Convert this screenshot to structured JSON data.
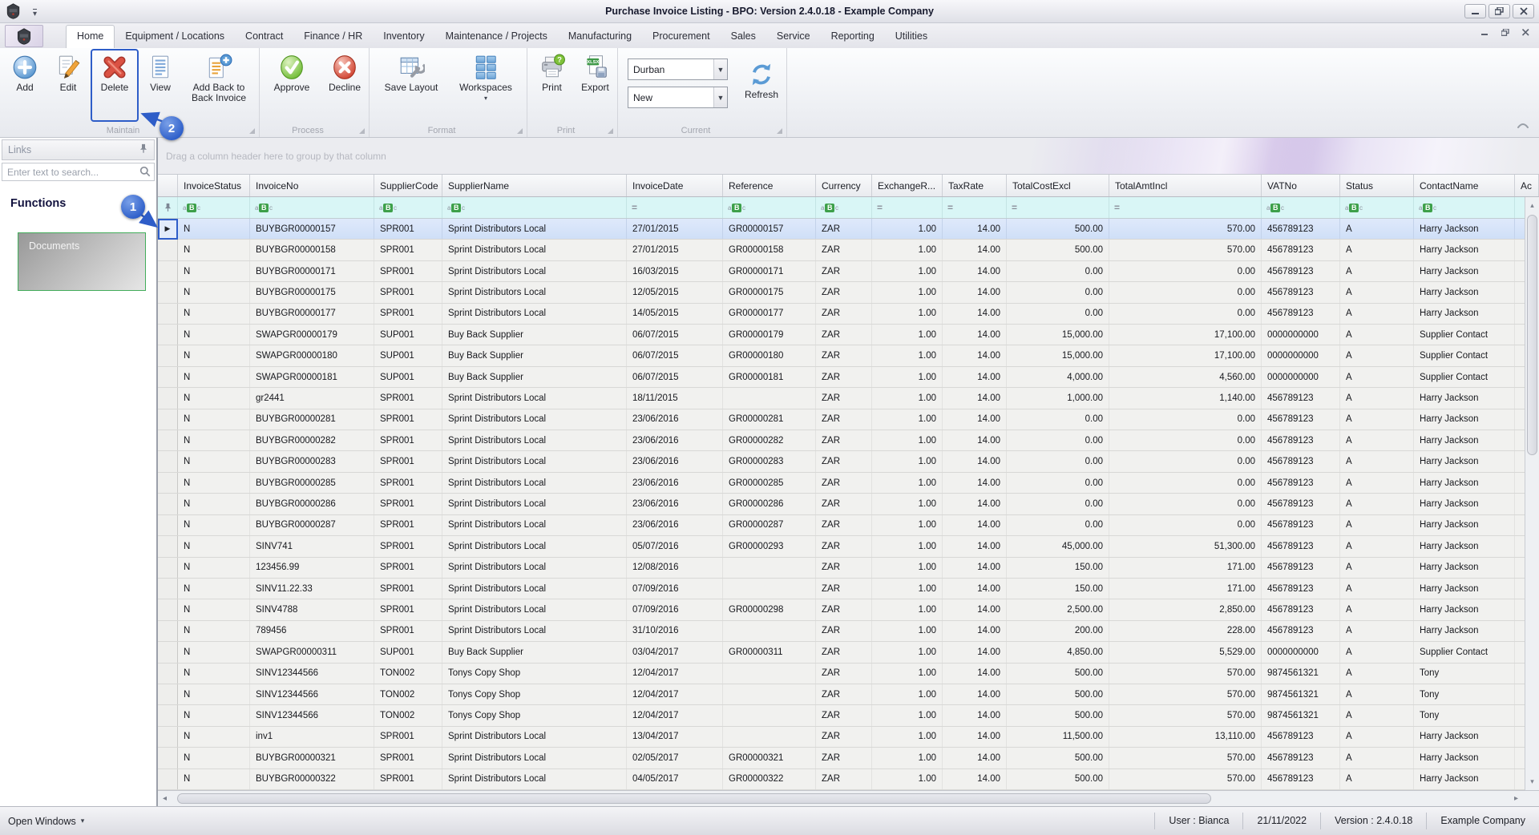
{
  "window": {
    "title": "Purchase Invoice Listing - BPO: Version 2.4.0.18 - Example Company"
  },
  "tabs": {
    "active": "Home",
    "items": [
      "Home",
      "Equipment / Locations",
      "Contract",
      "Finance / HR",
      "Inventory",
      "Maintenance / Projects",
      "Manufacturing",
      "Procurement",
      "Sales",
      "Service",
      "Reporting",
      "Utilities"
    ]
  },
  "ribbon": {
    "groups": [
      {
        "caption": "Maintain",
        "items": [
          {
            "label": "Add"
          },
          {
            "label": "Edit"
          },
          {
            "label": "Delete"
          },
          {
            "label": "View"
          },
          {
            "label": "Add Back to Back Invoice"
          }
        ]
      },
      {
        "caption": "Process",
        "items": [
          {
            "label": "Approve"
          },
          {
            "label": "Decline"
          }
        ]
      },
      {
        "caption": "Format",
        "items": [
          {
            "label": "Save Layout"
          },
          {
            "label": "Workspaces"
          }
        ]
      },
      {
        "caption": "Print",
        "items": [
          {
            "label": "Print"
          },
          {
            "label": "Export"
          }
        ]
      },
      {
        "caption": "Current",
        "items": [
          {
            "label": "Durban",
            "type": "dropdown"
          },
          {
            "label": "New",
            "type": "dropdown"
          },
          {
            "label": "Refresh"
          }
        ]
      }
    ]
  },
  "sidebar": {
    "title": "Links",
    "search_placeholder": "Enter text to search...",
    "functions_heading": "Functions",
    "tiles": [
      {
        "label": "Documents"
      }
    ]
  },
  "grid": {
    "group_hint": "Drag a column header here to group by that column",
    "selected_row_index": 0,
    "columns": [
      {
        "label": "InvoiceStatus",
        "filter": "abc"
      },
      {
        "label": "InvoiceNo",
        "filter": "abc"
      },
      {
        "label": "SupplierCode",
        "filter": "abc"
      },
      {
        "label": "SupplierName",
        "filter": "abc"
      },
      {
        "label": "InvoiceDate",
        "filter": "equals"
      },
      {
        "label": "Reference",
        "filter": "abc"
      },
      {
        "label": "Currency",
        "filter": "abc"
      },
      {
        "label": "ExchangeR...",
        "filter": "equals",
        "align": "right"
      },
      {
        "label": "TaxRate",
        "filter": "equals",
        "align": "right"
      },
      {
        "label": "TotalCostExcl",
        "filter": "equals",
        "align": "right"
      },
      {
        "label": "TotalAmtIncl",
        "filter": "equals",
        "align": "right"
      },
      {
        "label": "VATNo",
        "filter": "abc"
      },
      {
        "label": "Status",
        "filter": "abc"
      },
      {
        "label": "ContactName",
        "filter": "abc"
      },
      {
        "label": "Ac",
        "filter": null
      }
    ],
    "rows": [
      [
        "N",
        "BUYBGR00000157",
        "SPR001",
        "Sprint Distributors Local",
        "27/01/2015",
        "GR00000157",
        "ZAR",
        "1.00",
        "14.00",
        "500.00",
        "570.00",
        "456789123",
        "A",
        "Harry Jackson"
      ],
      [
        "N",
        "BUYBGR00000158",
        "SPR001",
        "Sprint Distributors Local",
        "27/01/2015",
        "GR00000158",
        "ZAR",
        "1.00",
        "14.00",
        "500.00",
        "570.00",
        "456789123",
        "A",
        "Harry Jackson"
      ],
      [
        "N",
        "BUYBGR00000171",
        "SPR001",
        "Sprint Distributors Local",
        "16/03/2015",
        "GR00000171",
        "ZAR",
        "1.00",
        "14.00",
        "0.00",
        "0.00",
        "456789123",
        "A",
        "Harry Jackson"
      ],
      [
        "N",
        "BUYBGR00000175",
        "SPR001",
        "Sprint Distributors Local",
        "12/05/2015",
        "GR00000175",
        "ZAR",
        "1.00",
        "14.00",
        "0.00",
        "0.00",
        "456789123",
        "A",
        "Harry Jackson"
      ],
      [
        "N",
        "BUYBGR00000177",
        "SPR001",
        "Sprint Distributors Local",
        "14/05/2015",
        "GR00000177",
        "ZAR",
        "1.00",
        "14.00",
        "0.00",
        "0.00",
        "456789123",
        "A",
        "Harry Jackson"
      ],
      [
        "N",
        "SWAPGR00000179",
        "SUP001",
        "Buy Back Supplier",
        "06/07/2015",
        "GR00000179",
        "ZAR",
        "1.00",
        "14.00",
        "15,000.00",
        "17,100.00",
        "0000000000",
        "A",
        "Supplier Contact"
      ],
      [
        "N",
        "SWAPGR00000180",
        "SUP001",
        "Buy Back Supplier",
        "06/07/2015",
        "GR00000180",
        "ZAR",
        "1.00",
        "14.00",
        "15,000.00",
        "17,100.00",
        "0000000000",
        "A",
        "Supplier Contact"
      ],
      [
        "N",
        "SWAPGR00000181",
        "SUP001",
        "Buy Back Supplier",
        "06/07/2015",
        "GR00000181",
        "ZAR",
        "1.00",
        "14.00",
        "4,000.00",
        "4,560.00",
        "0000000000",
        "A",
        "Supplier Contact"
      ],
      [
        "N",
        "gr2441",
        "SPR001",
        "Sprint Distributors Local",
        "18/11/2015",
        "",
        "ZAR",
        "1.00",
        "14.00",
        "1,000.00",
        "1,140.00",
        "456789123",
        "A",
        "Harry Jackson"
      ],
      [
        "N",
        "BUYBGR00000281",
        "SPR001",
        "Sprint Distributors Local",
        "23/06/2016",
        "GR00000281",
        "ZAR",
        "1.00",
        "14.00",
        "0.00",
        "0.00",
        "456789123",
        "A",
        "Harry Jackson"
      ],
      [
        "N",
        "BUYBGR00000282",
        "SPR001",
        "Sprint Distributors Local",
        "23/06/2016",
        "GR00000282",
        "ZAR",
        "1.00",
        "14.00",
        "0.00",
        "0.00",
        "456789123",
        "A",
        "Harry Jackson"
      ],
      [
        "N",
        "BUYBGR00000283",
        "SPR001",
        "Sprint Distributors Local",
        "23/06/2016",
        "GR00000283",
        "ZAR",
        "1.00",
        "14.00",
        "0.00",
        "0.00",
        "456789123",
        "A",
        "Harry Jackson"
      ],
      [
        "N",
        "BUYBGR00000285",
        "SPR001",
        "Sprint Distributors Local",
        "23/06/2016",
        "GR00000285",
        "ZAR",
        "1.00",
        "14.00",
        "0.00",
        "0.00",
        "456789123",
        "A",
        "Harry Jackson"
      ],
      [
        "N",
        "BUYBGR00000286",
        "SPR001",
        "Sprint Distributors Local",
        "23/06/2016",
        "GR00000286",
        "ZAR",
        "1.00",
        "14.00",
        "0.00",
        "0.00",
        "456789123",
        "A",
        "Harry Jackson"
      ],
      [
        "N",
        "BUYBGR00000287",
        "SPR001",
        "Sprint Distributors Local",
        "23/06/2016",
        "GR00000287",
        "ZAR",
        "1.00",
        "14.00",
        "0.00",
        "0.00",
        "456789123",
        "A",
        "Harry Jackson"
      ],
      [
        "N",
        "SINV741",
        "SPR001",
        "Sprint Distributors Local",
        "05/07/2016",
        "GR00000293",
        "ZAR",
        "1.00",
        "14.00",
        "45,000.00",
        "51,300.00",
        "456789123",
        "A",
        "Harry Jackson"
      ],
      [
        "N",
        "123456.99",
        "SPR001",
        "Sprint Distributors Local",
        "12/08/2016",
        "",
        "ZAR",
        "1.00",
        "14.00",
        "150.00",
        "171.00",
        "456789123",
        "A",
        "Harry Jackson"
      ],
      [
        "N",
        "SINV11.22.33",
        "SPR001",
        "Sprint Distributors Local",
        "07/09/2016",
        "",
        "ZAR",
        "1.00",
        "14.00",
        "150.00",
        "171.00",
        "456789123",
        "A",
        "Harry Jackson"
      ],
      [
        "N",
        "SINV4788",
        "SPR001",
        "Sprint Distributors Local",
        "07/09/2016",
        "GR00000298",
        "ZAR",
        "1.00",
        "14.00",
        "2,500.00",
        "2,850.00",
        "456789123",
        "A",
        "Harry Jackson"
      ],
      [
        "N",
        "789456",
        "SPR001",
        "Sprint Distributors Local",
        "31/10/2016",
        "",
        "ZAR",
        "1.00",
        "14.00",
        "200.00",
        "228.00",
        "456789123",
        "A",
        "Harry Jackson"
      ],
      [
        "N",
        "SWAPGR00000311",
        "SUP001",
        "Buy Back Supplier",
        "03/04/2017",
        "GR00000311",
        "ZAR",
        "1.00",
        "14.00",
        "4,850.00",
        "5,529.00",
        "0000000000",
        "A",
        "Supplier Contact"
      ],
      [
        "N",
        "SINV12344566",
        "TON002",
        "Tonys Copy Shop",
        "12/04/2017",
        "",
        "ZAR",
        "1.00",
        "14.00",
        "500.00",
        "570.00",
        "9874561321",
        "A",
        "Tony"
      ],
      [
        "N",
        "SINV12344566",
        "TON002",
        "Tonys Copy Shop",
        "12/04/2017",
        "",
        "ZAR",
        "1.00",
        "14.00",
        "500.00",
        "570.00",
        "9874561321",
        "A",
        "Tony"
      ],
      [
        "N",
        "SINV12344566",
        "TON002",
        "Tonys Copy Shop",
        "12/04/2017",
        "",
        "ZAR",
        "1.00",
        "14.00",
        "500.00",
        "570.00",
        "9874561321",
        "A",
        "Tony"
      ],
      [
        "N",
        "inv1",
        "SPR001",
        "Sprint Distributors Local",
        "13/04/2017",
        "",
        "ZAR",
        "1.00",
        "14.00",
        "11,500.00",
        "13,110.00",
        "456789123",
        "A",
        "Harry Jackson"
      ],
      [
        "N",
        "BUYBGR00000321",
        "SPR001",
        "Sprint Distributors Local",
        "02/05/2017",
        "GR00000321",
        "ZAR",
        "1.00",
        "14.00",
        "500.00",
        "570.00",
        "456789123",
        "A",
        "Harry Jackson"
      ],
      [
        "N",
        "BUYBGR00000322",
        "SPR001",
        "Sprint Distributors Local",
        "04/05/2017",
        "GR00000322",
        "ZAR",
        "1.00",
        "14.00",
        "500.00",
        "570.00",
        "456789123",
        "A",
        "Harry Jackson"
      ]
    ]
  },
  "callouts": {
    "badge1": "1",
    "badge2": "2"
  },
  "statusbar": {
    "open_windows": "Open Windows",
    "items": [
      "User : Bianca",
      "21/11/2022",
      "Version : 2.4.0.18",
      "Example Company"
    ]
  }
}
